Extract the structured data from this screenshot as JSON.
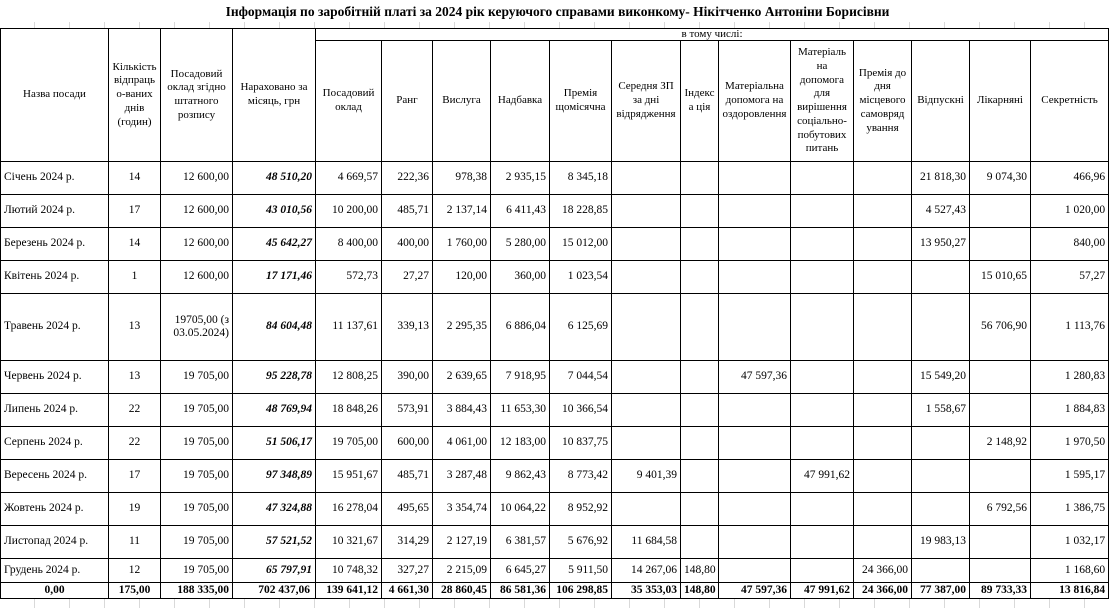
{
  "title": "Інформація по заробітній платі за 2024 рік  керуючого справами виконкому-  Нікітченко Антоніни Борисівни",
  "colors": {
    "border": "#000000",
    "gridline": "#d9d9d9",
    "background": "#ffffff",
    "text": "#000000"
  },
  "table": {
    "group_header": "в тому числі:",
    "columns": [
      "Назва посади",
      "Кількість відпрацьо-ваних днів (годин)",
      "Посадовий оклад згідно штатного розпису",
      "Нараховано за місяць, грн",
      "Посадовий оклад",
      "Ранг",
      "Вислуга",
      "Надбавка",
      "Премія щомісячна",
      "Середня ЗП за дні відрядження",
      "Індекса ція",
      "Матеріальна допомога на оздоровлення",
      "Матеріаль на допомога для вирішення соціально-побутових питань",
      "Премія до дня місцевого самовряд ування",
      "Відпускні",
      "Лікарняні",
      "Секретність"
    ],
    "rows": [
      [
        "Січень 2024 р.",
        "14",
        "12 600,00",
        "48 510,20",
        "4 669,57",
        "222,36",
        "978,38",
        "2 935,15",
        "8 345,18",
        "",
        "",
        "",
        "",
        "",
        "21 818,30",
        "9 074,30",
        "466,96"
      ],
      [
        "Лютий 2024 р.",
        "17",
        "12 600,00",
        "43 010,56",
        "10 200,00",
        "485,71",
        "2 137,14",
        "6 411,43",
        "18 228,85",
        "",
        "",
        "",
        "",
        "",
        "4 527,43",
        "",
        "1 020,00"
      ],
      [
        "Березень 2024 р.",
        "14",
        "12 600,00",
        "45 642,27",
        "8 400,00",
        "400,00",
        "1 760,00",
        "5 280,00",
        "15 012,00",
        "",
        "",
        "",
        "",
        "",
        "13 950,27",
        "",
        "840,00"
      ],
      [
        "Квітень 2024 р.",
        "1",
        "12 600,00",
        "17 171,46",
        "572,73",
        "27,27",
        "120,00",
        "360,00",
        "1 023,54",
        "",
        "",
        "",
        "",
        "",
        "",
        "15 010,65",
        "57,27"
      ],
      [
        "Травень 2024 р.",
        "13",
        "19705,00 (з 03.05.2024)",
        "84 604,48",
        "11 137,61",
        "339,13",
        "2 295,35",
        "6 886,04",
        "6 125,69",
        "",
        "",
        "",
        "",
        "",
        "",
        "56 706,90",
        "1 113,76"
      ],
      [
        "Червень 2024 р.",
        "13",
        "19 705,00",
        "95 228,78",
        "12 808,25",
        "390,00",
        "2 639,65",
        "7 918,95",
        "7 044,54",
        "",
        "",
        "47 597,36",
        "",
        "",
        "15 549,20",
        "",
        "1 280,83"
      ],
      [
        "Липень 2024 р.",
        "22",
        "19 705,00",
        "48 769,94",
        "18 848,26",
        "573,91",
        "3 884,43",
        "11 653,30",
        "10 366,54",
        "",
        "",
        "",
        "",
        "",
        "1 558,67",
        "",
        "1 884,83"
      ],
      [
        "Серпень 2024 р.",
        "22",
        "19 705,00",
        "51 506,17",
        "19 705,00",
        "600,00",
        "4 061,00",
        "12 183,00",
        "10 837,75",
        "",
        "",
        "",
        "",
        "",
        "",
        "2 148,92",
        "1 970,50"
      ],
      [
        "Вересень 2024 р.",
        "17",
        "19 705,00",
        "97 348,89",
        "15 951,67",
        "485,71",
        "3 287,48",
        "9 862,43",
        "8 773,42",
        "9 401,39",
        "",
        "",
        "47 991,62",
        "",
        "",
        "",
        "1 595,17"
      ],
      [
        "Жовтень 2024 р.",
        "19",
        "19 705,00",
        "47 324,88",
        "16 278,04",
        "495,65",
        "3 354,74",
        "10 064,22",
        "8 952,92",
        "",
        "",
        "",
        "",
        "",
        "",
        "6 792,56",
        "1 386,75"
      ],
      [
        "Листопад 2024 р.",
        "11",
        "19 705,00",
        "57 521,52",
        "10 321,67",
        "314,29",
        "2 127,19",
        "6 381,57",
        "5 676,92",
        "11 684,58",
        "",
        "",
        "",
        "",
        "19 983,13",
        "",
        "1 032,17"
      ],
      [
        "Грудень 2024 р.",
        "12",
        "19 705,00",
        "65 797,91",
        "10 748,32",
        "327,27",
        "2 215,09",
        "6 645,27",
        "5 911,50",
        "14 267,06",
        "148,80",
        "",
        "",
        "24 366,00",
        "",
        "",
        "1 168,60"
      ]
    ],
    "totals": [
      "0,00",
      "175,00",
      "188 335,00",
      "702 437,06",
      "139 641,12",
      "4 661,30",
      "28 860,45",
      "86 581,36",
      "106 298,85",
      "35 353,03",
      "148,80",
      "47 597,36",
      "47 991,62",
      "24 366,00",
      "77 387,00",
      "89 733,33",
      "13 816,84"
    ]
  }
}
